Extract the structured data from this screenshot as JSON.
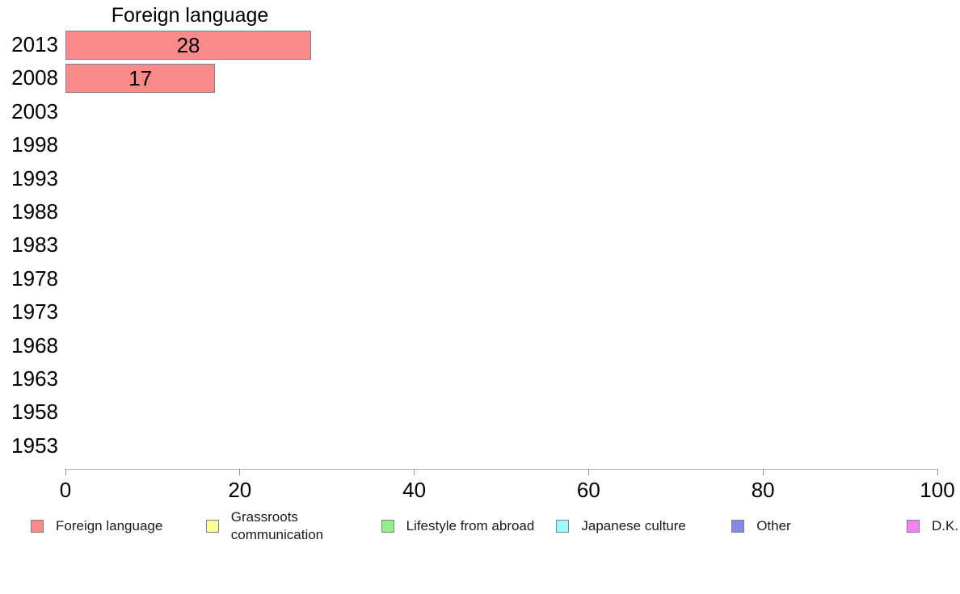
{
  "chart_data": {
    "type": "bar",
    "orientation": "horizontal",
    "title": "Foreign language",
    "categories": [
      "2013",
      "2008",
      "2003",
      "1998",
      "1993",
      "1988",
      "1983",
      "1978",
      "1973",
      "1968",
      "1963",
      "1958",
      "1953"
    ],
    "values": [
      28,
      17,
      0,
      0,
      0,
      0,
      0,
      0,
      0,
      0,
      0,
      0,
      0
    ],
    "xlabel": "",
    "ylabel": "",
    "xlim": [
      0,
      100
    ],
    "xticks": [
      0,
      20,
      40,
      60,
      80,
      100
    ],
    "grid": false,
    "bar_color": "#FA8A8A",
    "bar_border_color": "#808080",
    "value_label_color": "#000000",
    "axis_color": "#B0B0B0",
    "legend_position": "bottom",
    "legend": [
      {
        "label": "Foreign language",
        "color": "#FA8A8A"
      },
      {
        "label": "Grassroots\ncommunication",
        "color": "#FFFF99"
      },
      {
        "label": "Lifestyle from abroad",
        "color": "#90EE90"
      },
      {
        "label": "Japanese culture",
        "color": "#99FFFF"
      },
      {
        "label": "Other",
        "color": "#8888EB"
      },
      {
        "label": "D.K.",
        "color": "#FA80FA"
      }
    ]
  }
}
